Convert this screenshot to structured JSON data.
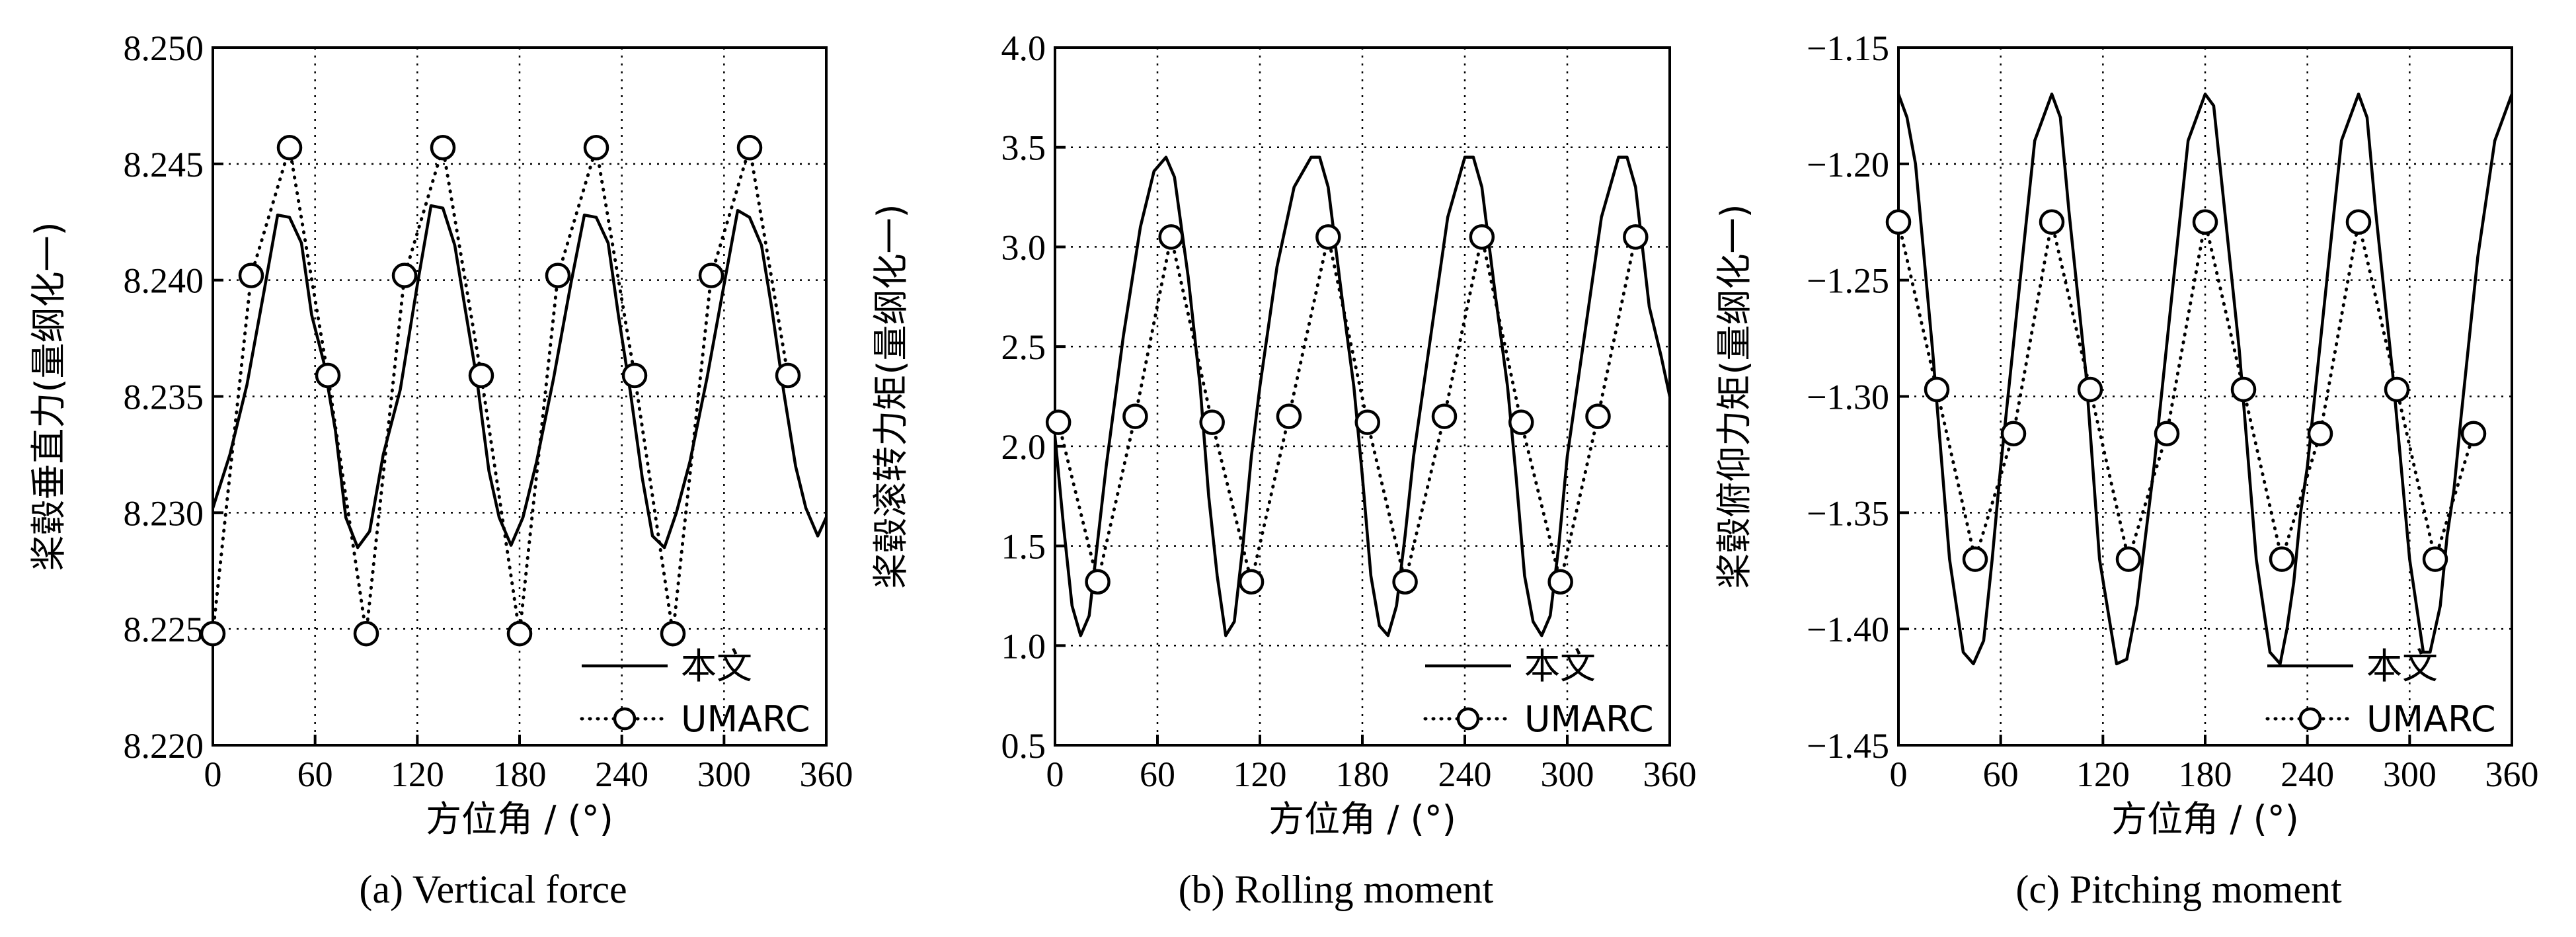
{
  "legend": [
    "本文",
    "UMARC"
  ],
  "chart_data": [
    {
      "type": "line",
      "caption": "(a)  Vertical force",
      "xlabel": "方位角 / (°)",
      "ylabel": "桨毂垂直力(量纲化一)",
      "xlim": [
        0,
        360
      ],
      "ylim": [
        8.22,
        8.25
      ],
      "xticks": [
        "0",
        "60",
        "120",
        "180",
        "240",
        "300",
        "360"
      ],
      "yticks": [
        "8.220",
        "8.225",
        "8.230",
        "8.235",
        "8.240",
        "8.245",
        "8.250"
      ],
      "grid": true,
      "legend_position": "bottom-right",
      "series": [
        {
          "name": "本文",
          "style": "solid",
          "x": [
            0,
            10,
            20,
            30,
            38,
            45,
            52,
            58,
            65,
            72,
            78,
            85,
            92,
            100,
            110,
            120,
            128,
            135,
            142,
            148,
            155,
            162,
            168,
            175,
            182,
            190,
            200,
            210,
            218,
            225,
            232,
            238,
            245,
            252,
            258,
            265,
            272,
            280,
            290,
            300,
            308,
            315,
            322,
            328,
            335,
            342,
            348,
            355,
            360
          ],
          "y": [
            8.2302,
            8.2325,
            8.2355,
            8.2395,
            8.2428,
            8.2427,
            8.2416,
            8.2385,
            8.2365,
            8.2335,
            8.2298,
            8.2285,
            8.2292,
            8.2325,
            8.2353,
            8.2398,
            8.2432,
            8.2431,
            8.2415,
            8.2388,
            8.2357,
            8.2318,
            8.2298,
            8.2286,
            8.2298,
            8.2322,
            8.2358,
            8.2398,
            8.2428,
            8.2427,
            8.2416,
            8.2385,
            8.2352,
            8.2315,
            8.229,
            8.2285,
            8.23,
            8.2322,
            8.2358,
            8.2398,
            8.243,
            8.2427,
            8.2415,
            8.2388,
            8.2352,
            8.232,
            8.2302,
            8.229,
            8.2298
          ]
        },
        {
          "name": "UMARC",
          "style": "dotted-circle",
          "x": [
            0,
            22.5,
            45,
            67.5,
            90,
            112.5,
            135,
            157.5,
            180,
            202.5,
            225,
            247.5,
            270,
            292.5,
            315,
            337.5
          ],
          "y": [
            8.2248,
            8.2402,
            8.2457,
            8.2359,
            8.2248,
            8.2402,
            8.2457,
            8.2359,
            8.2248,
            8.2402,
            8.2457,
            8.2359,
            8.2248,
            8.2402,
            8.2457,
            8.2359
          ]
        }
      ]
    },
    {
      "type": "line",
      "caption": "(b)  Rolling moment",
      "xlabel": "方位角 / (°)",
      "ylabel": "桨毂滚转力矩(量纲化一)",
      "xlim": [
        0,
        360
      ],
      "ylim": [
        0.5,
        4.0
      ],
      "xticks": [
        "0",
        "60",
        "120",
        "180",
        "240",
        "300",
        "360"
      ],
      "yticks": [
        "0.5",
        "1.0",
        "1.5",
        "2.0",
        "2.5",
        "3.0",
        "3.5",
        "4.0"
      ],
      "grid": true,
      "legend_position": "bottom-right",
      "series": [
        {
          "name": "本文",
          "style": "solid",
          "x": [
            0,
            5,
            10,
            15,
            20,
            30,
            40,
            50,
            58,
            65,
            70,
            78,
            85,
            90,
            95,
            100,
            105,
            110,
            115,
            120,
            130,
            140,
            150,
            155,
            160,
            168,
            175,
            180,
            185,
            190,
            195,
            200,
            205,
            210,
            220,
            230,
            240,
            245,
            250,
            258,
            265,
            270,
            275,
            280,
            285,
            290,
            295,
            300,
            310,
            320,
            330,
            335,
            340,
            348,
            355,
            360
          ],
          "y": [
            2.05,
            1.6,
            1.2,
            1.05,
            1.15,
            1.9,
            2.55,
            3.1,
            3.38,
            3.45,
            3.35,
            2.85,
            2.3,
            1.75,
            1.35,
            1.05,
            1.12,
            1.5,
            1.95,
            2.3,
            2.9,
            3.3,
            3.45,
            3.45,
            3.3,
            2.75,
            2.3,
            1.85,
            1.35,
            1.1,
            1.05,
            1.2,
            1.55,
            1.95,
            2.55,
            3.15,
            3.45,
            3.45,
            3.3,
            2.75,
            2.3,
            1.85,
            1.35,
            1.12,
            1.05,
            1.15,
            1.5,
            1.95,
            2.55,
            3.15,
            3.45,
            3.45,
            3.3,
            2.7,
            2.45,
            2.25
          ]
        },
        {
          "name": "UMARC",
          "style": "dotted-circle",
          "x": [
            2,
            25,
            47,
            68,
            92,
            115,
            137,
            160,
            183,
            205,
            228,
            250,
            273,
            296,
            318,
            340
          ],
          "y": [
            2.12,
            1.32,
            2.15,
            3.05,
            2.12,
            1.32,
            2.15,
            3.05,
            2.12,
            1.32,
            2.15,
            3.05,
            2.12,
            1.32,
            2.15,
            3.05
          ]
        }
      ]
    },
    {
      "type": "line",
      "caption": "(c)  Pitching moment",
      "xlabel": "方位角 / (°)",
      "ylabel": "桨毂俯仰力矩(量纲化一)",
      "xlim": [
        0,
        360
      ],
      "ylim": [
        -1.45,
        -1.15
      ],
      "xticks": [
        "0",
        "60",
        "120",
        "180",
        "240",
        "300",
        "360"
      ],
      "yticks": [
        "−1.45",
        "−1.40",
        "−1.35",
        "−1.30",
        "−1.25",
        "−1.20",
        "−1.15"
      ],
      "grid": true,
      "legend_position": "bottom-right",
      "series": [
        {
          "name": "本文",
          "style": "solid",
          "x": [
            0,
            5,
            10,
            20,
            30,
            38,
            44,
            50,
            55,
            60,
            70,
            80,
            90,
            95,
            100,
            110,
            118,
            128,
            134,
            140,
            145,
            150,
            160,
            170,
            180,
            185,
            190,
            200,
            210,
            218,
            224,
            228,
            232,
            236,
            240,
            250,
            260,
            270,
            275,
            280,
            290,
            300,
            308,
            312,
            318,
            322,
            326,
            330,
            340,
            350,
            360
          ],
          "y": [
            -1.17,
            -1.18,
            -1.2,
            -1.28,
            -1.37,
            -1.41,
            -1.415,
            -1.405,
            -1.37,
            -1.33,
            -1.26,
            -1.19,
            -1.17,
            -1.18,
            -1.22,
            -1.29,
            -1.37,
            -1.415,
            -1.413,
            -1.39,
            -1.36,
            -1.33,
            -1.26,
            -1.19,
            -1.17,
            -1.175,
            -1.21,
            -1.28,
            -1.37,
            -1.41,
            -1.415,
            -1.4,
            -1.38,
            -1.35,
            -1.33,
            -1.26,
            -1.19,
            -1.17,
            -1.18,
            -1.22,
            -1.29,
            -1.37,
            -1.41,
            -1.41,
            -1.39,
            -1.36,
            -1.34,
            -1.31,
            -1.24,
            -1.19,
            -1.17
          ]
        },
        {
          "name": "UMARC",
          "style": "dotted-circle",
          "x": [
            0,
            22.5,
            45,
            67.5,
            90,
            112.5,
            135,
            157.5,
            180,
            202.5,
            225,
            247.5,
            270,
            292.5,
            315,
            337.5
          ],
          "y": [
            -1.225,
            -1.297,
            -1.37,
            -1.316,
            -1.225,
            -1.297,
            -1.37,
            -1.316,
            -1.225,
            -1.297,
            -1.37,
            -1.316,
            -1.225,
            -1.297,
            -1.37,
            -1.316
          ]
        }
      ]
    }
  ]
}
